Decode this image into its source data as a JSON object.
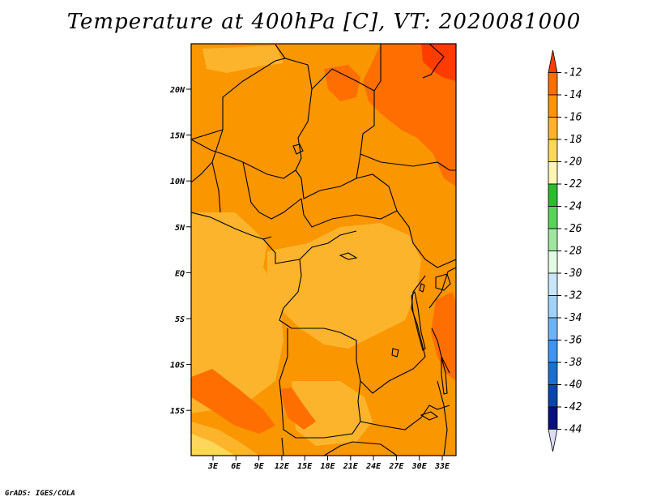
{
  "title": "Temperature at 400hPa [C], VT: 2020081000",
  "credit": "GrADS: IGES/COLA",
  "map": {
    "lat_labels": [
      "20N",
      "15N",
      "10N",
      "5N",
      "EQ",
      "5S",
      "10S",
      "15S"
    ],
    "lon_labels": [
      "3E",
      "6E",
      "9E",
      "12E",
      "15E",
      "18E",
      "21E",
      "24E",
      "27E",
      "30E",
      "33E"
    ]
  },
  "colorbar": {
    "labels": [
      "-12",
      "-14",
      "-16",
      "-18",
      "-20",
      "-22",
      "-24",
      "-26",
      "-28",
      "-30",
      "-32",
      "-34",
      "-36",
      "-38",
      "-40",
      "-42",
      "-44"
    ],
    "colors": [
      "#ff3c00",
      "#ff6e00",
      "#fa9600",
      "#fbb42c",
      "#fdd65c",
      "#fdf5b4",
      "#2fba2f",
      "#5ad25a",
      "#a0e6a0",
      "#e2fbe2",
      "#c8e6fa",
      "#a0d2fa",
      "#6eb4f5",
      "#3c96f0",
      "#1e6ed2",
      "#0a46aa",
      "#08107c",
      "#dcdcf5"
    ]
  },
  "colors": {
    "frame": "#000000",
    "background": "#ffffff"
  }
}
